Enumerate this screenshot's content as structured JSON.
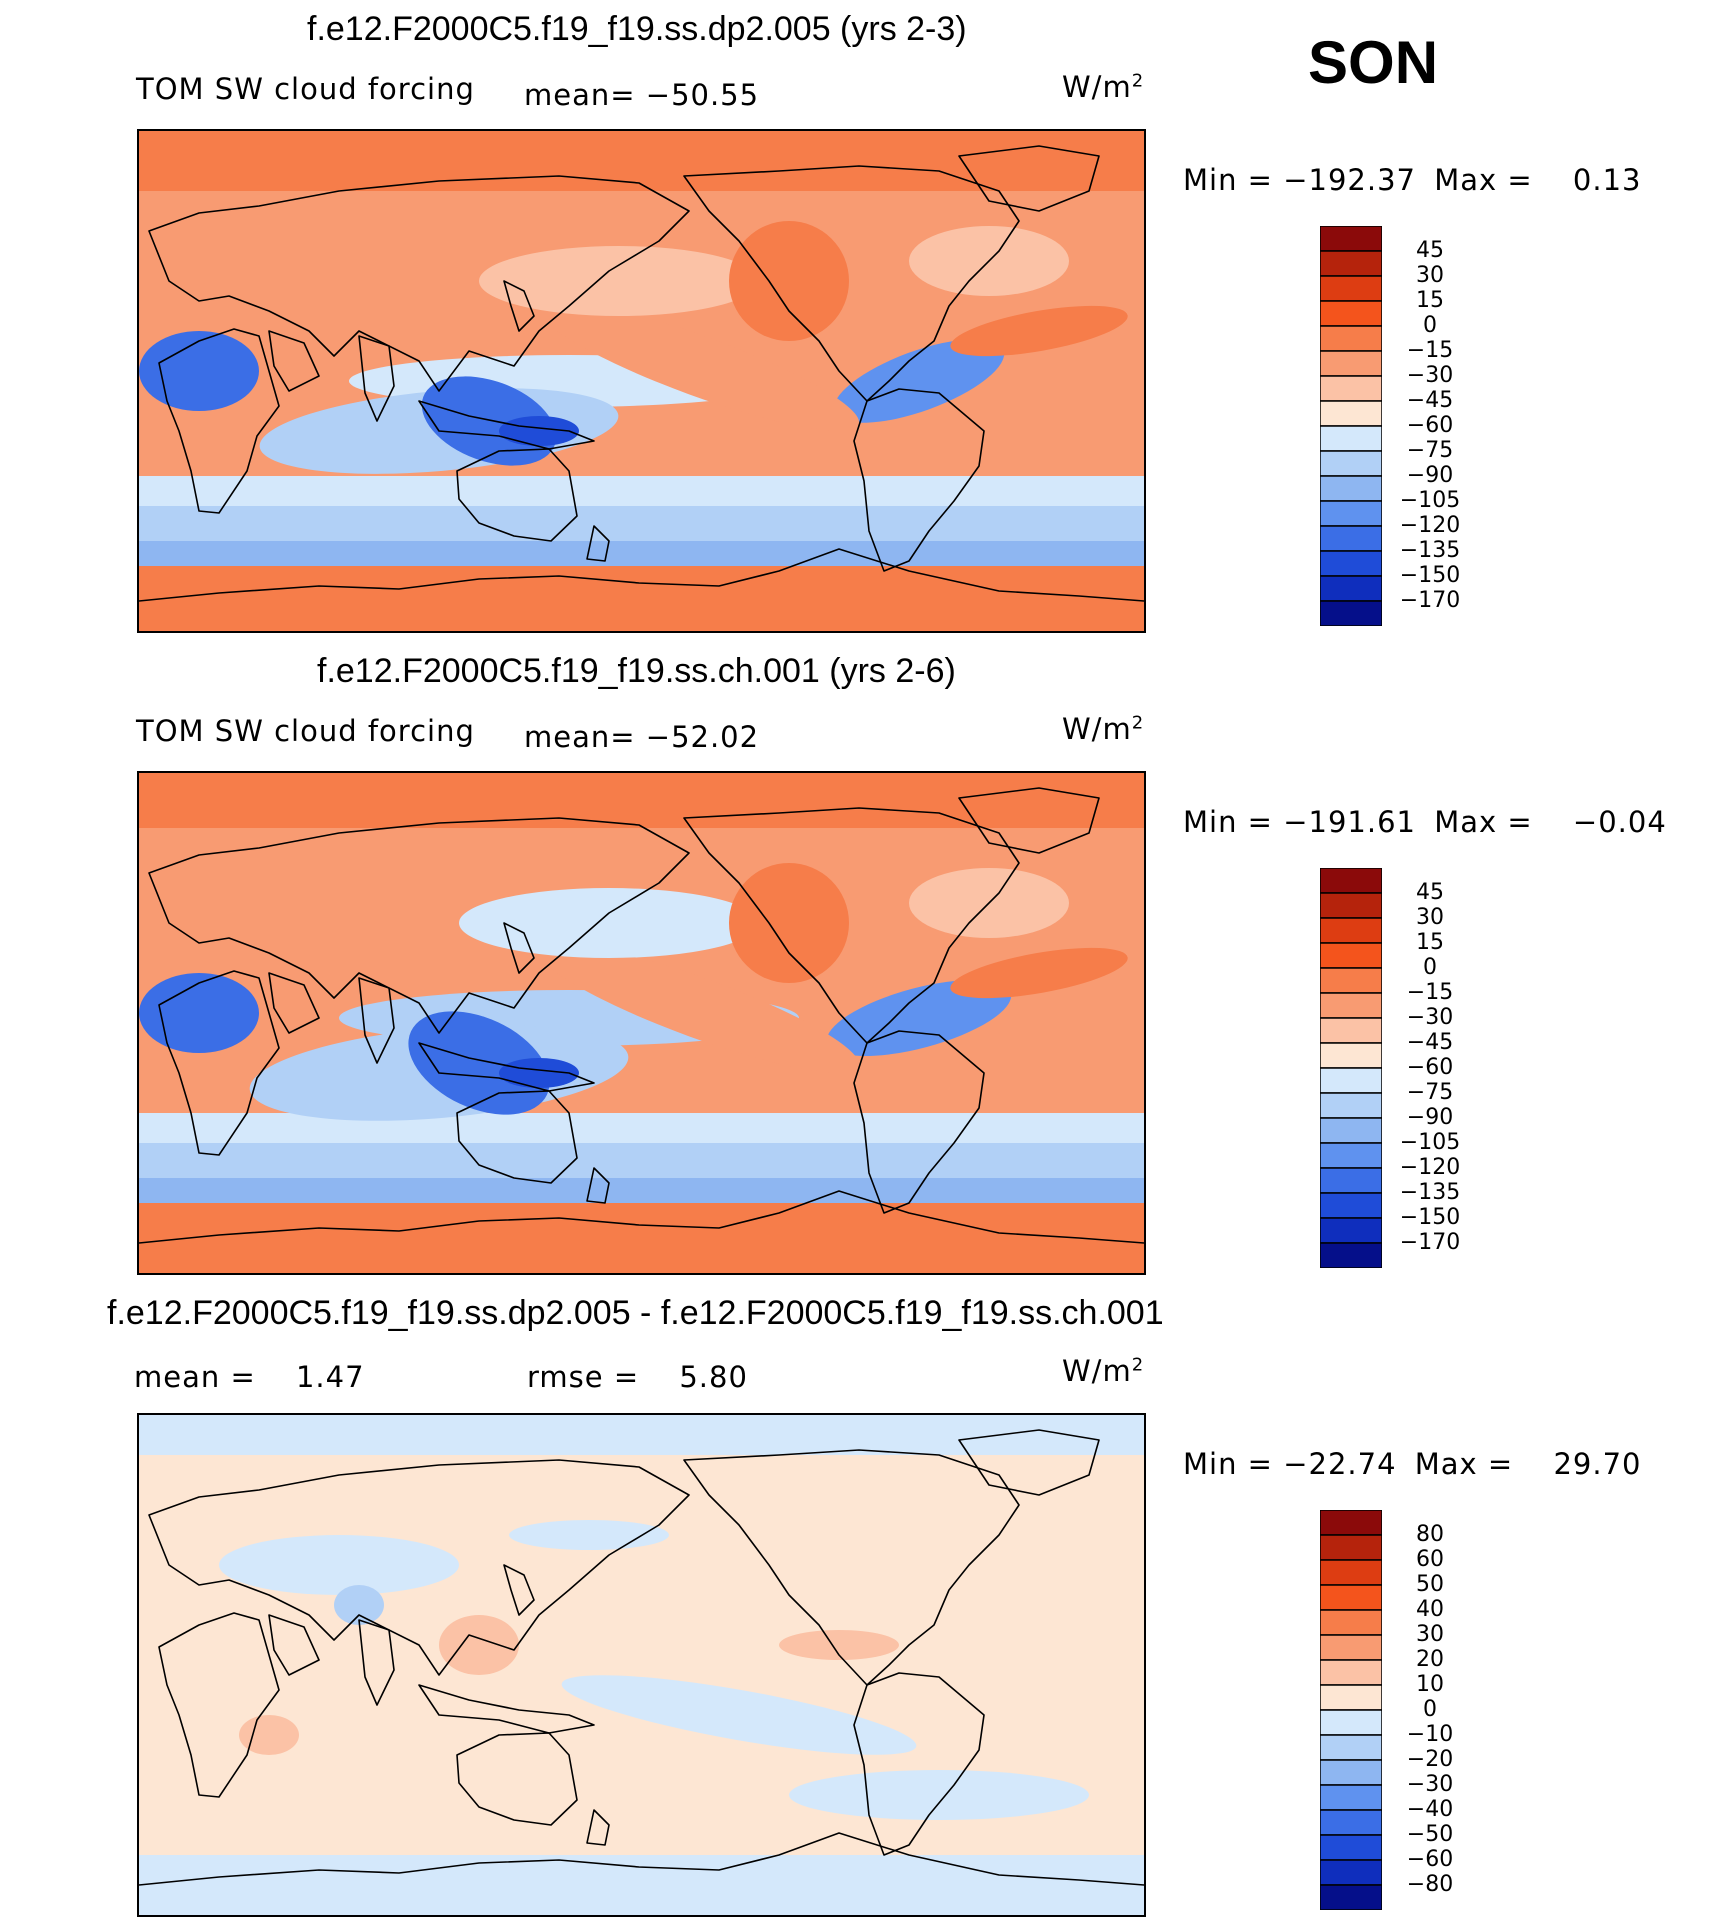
{
  "season": "SON",
  "units": "W/m",
  "units_sup": "2",
  "panels": [
    {
      "id": "panel1",
      "title": "f.e12.F2000C5.f19_f19.ss.dp2.005 (yrs 2-3)",
      "left_label": "TOM SW cloud forcing",
      "stat1": "mean=",
      "stat1_value": "−50.55",
      "minmax": {
        "min_label": "Min  =",
        "min": "−192.37",
        "max_label": "Max  =",
        "max": "0.13"
      }
    },
    {
      "id": "panel2",
      "title": "f.e12.F2000C5.f19_f19.ss.ch.001 (yrs 2-6)",
      "left_label": "TOM SW cloud forcing",
      "stat1": "mean=",
      "stat1_value": "−52.02",
      "minmax": {
        "min_label": "Min  =",
        "min": "−191.61",
        "max_label": "Max  =",
        "max": "−0.04"
      }
    },
    {
      "id": "panel3",
      "title": "f.e12.F2000C5.f19_f19.ss.dp2.005 - f.e12.F2000C5.f19_f19.ss.ch.001",
      "left_label": "mean  =",
      "left_value": "1.47",
      "stat1": "rmse  =",
      "stat1_value": "5.80",
      "minmax": {
        "min_label": "Min  =",
        "min": "−22.74",
        "max_label": "Max  =",
        "max": "29.70"
      }
    }
  ],
  "chart_data": [
    {
      "type": "heatmap",
      "title": "f.e12.F2000C5.f19_f19.ss.dp2.005 (yrs 2-3)",
      "variable": "TOM SW cloud forcing",
      "units": "W/m^2",
      "mean": -50.55,
      "min": -192.37,
      "max": 0.13,
      "colorbar_levels": [
        "45",
        "30",
        "15",
        "0",
        "−15",
        "−30",
        "−45",
        "−60",
        "−75",
        "−90",
        "−105",
        "−120",
        "−135",
        "−150",
        "−170"
      ],
      "colors": [
        "#8b0a0a",
        "#b5230c",
        "#dd3d12",
        "#f4541c",
        "#f67d4a",
        "#f89b72",
        "#fbc2a6",
        "#fde6d3",
        "#d4e8fb",
        "#b1d0f6",
        "#8eb6f1",
        "#5f92ef",
        "#3b6ee6",
        "#1f4cd8",
        "#0f2ebd",
        "#050f8a"
      ]
    },
    {
      "type": "heatmap",
      "title": "f.e12.F2000C5.f19_f19.ss.ch.001 (yrs 2-6)",
      "variable": "TOM SW cloud forcing",
      "units": "W/m^2",
      "mean": -52.02,
      "min": -191.61,
      "max": -0.04,
      "colorbar_levels": [
        "45",
        "30",
        "15",
        "0",
        "−15",
        "−30",
        "−45",
        "−60",
        "−75",
        "−90",
        "−105",
        "−120",
        "−135",
        "−150",
        "−170"
      ],
      "colors": [
        "#8b0a0a",
        "#b5230c",
        "#dd3d12",
        "#f4541c",
        "#f67d4a",
        "#f89b72",
        "#fbc2a6",
        "#fde6d3",
        "#d4e8fb",
        "#b1d0f6",
        "#8eb6f1",
        "#5f92ef",
        "#3b6ee6",
        "#1f4cd8",
        "#0f2ebd",
        "#050f8a"
      ]
    },
    {
      "type": "heatmap",
      "title": "f.e12.F2000C5.f19_f19.ss.dp2.005 - f.e12.F2000C5.f19_f19.ss.ch.001",
      "variable": "difference",
      "units": "W/m^2",
      "mean": 1.47,
      "rmse": 5.8,
      "min": -22.74,
      "max": 29.7,
      "colorbar_levels": [
        "80",
        "60",
        "50",
        "40",
        "30",
        "20",
        "10",
        "0",
        "−10",
        "−20",
        "−30",
        "−40",
        "−50",
        "−60",
        "−80"
      ],
      "colors": [
        "#8b0a0a",
        "#b5230c",
        "#dd3d12",
        "#f4541c",
        "#f67d4a",
        "#f89b72",
        "#fbc2a6",
        "#fde6d3",
        "#d4e8fb",
        "#b1d0f6",
        "#8eb6f1",
        "#5f92ef",
        "#3b6ee6",
        "#1f4cd8",
        "#0f2ebd",
        "#050f8a"
      ]
    }
  ]
}
